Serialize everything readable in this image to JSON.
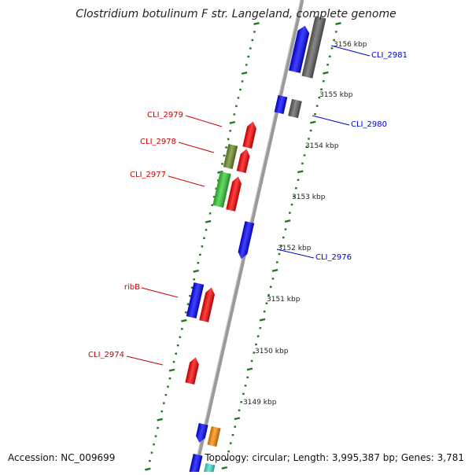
{
  "title": "Clostridium botulinum F str. Langeland, complete genome",
  "footer": {
    "accession": "Accession: NC_009699",
    "summary": "Topology: circular; Length: 3,995,387 bp; Genes: 3,781"
  },
  "colors": {
    "backbone": "#9a9a9a",
    "ticks": "#1f7a1f",
    "gene_label_red": "#cc0000",
    "gene_label_blue": "#0000cc"
  },
  "scale_labels": [
    "3156 kbp",
    "3155 kbp",
    "3154 kbp",
    "3153 kbp",
    "3152 kbp",
    "3151 kbp",
    "3150 kbp",
    "3149 kbp"
  ],
  "gene_labels": [
    {
      "text": "CLI_2981",
      "side": "right"
    },
    {
      "text": "CLI_2980",
      "side": "right"
    },
    {
      "text": "CLI_2979",
      "side": "left"
    },
    {
      "text": "CLI_2978",
      "side": "left"
    },
    {
      "text": "CLI_2977",
      "side": "left"
    },
    {
      "text": "CLI_2976",
      "side": "right"
    },
    {
      "text": "ribB",
      "side": "left"
    },
    {
      "text": "CLI_2974",
      "side": "left"
    }
  ],
  "genes": [
    {
      "color": "#0000ff"
    },
    {
      "color": "#606060"
    },
    {
      "color": "#0000ff"
    },
    {
      "color": "#606060"
    },
    {
      "color": "#ff0000"
    },
    {
      "color": "#6b8e23"
    },
    {
      "color": "#ff0000"
    },
    {
      "color": "#32cd32"
    },
    {
      "color": "#ff0000"
    },
    {
      "color": "#0000ff"
    },
    {
      "color": "#0000ff"
    },
    {
      "color": "#ff0000"
    },
    {
      "color": "#ff0000"
    },
    {
      "color": "#0000ff"
    },
    {
      "color": "#ff8c00"
    },
    {
      "color": "#0000ff"
    },
    {
      "color": "#40e0d0"
    }
  ]
}
